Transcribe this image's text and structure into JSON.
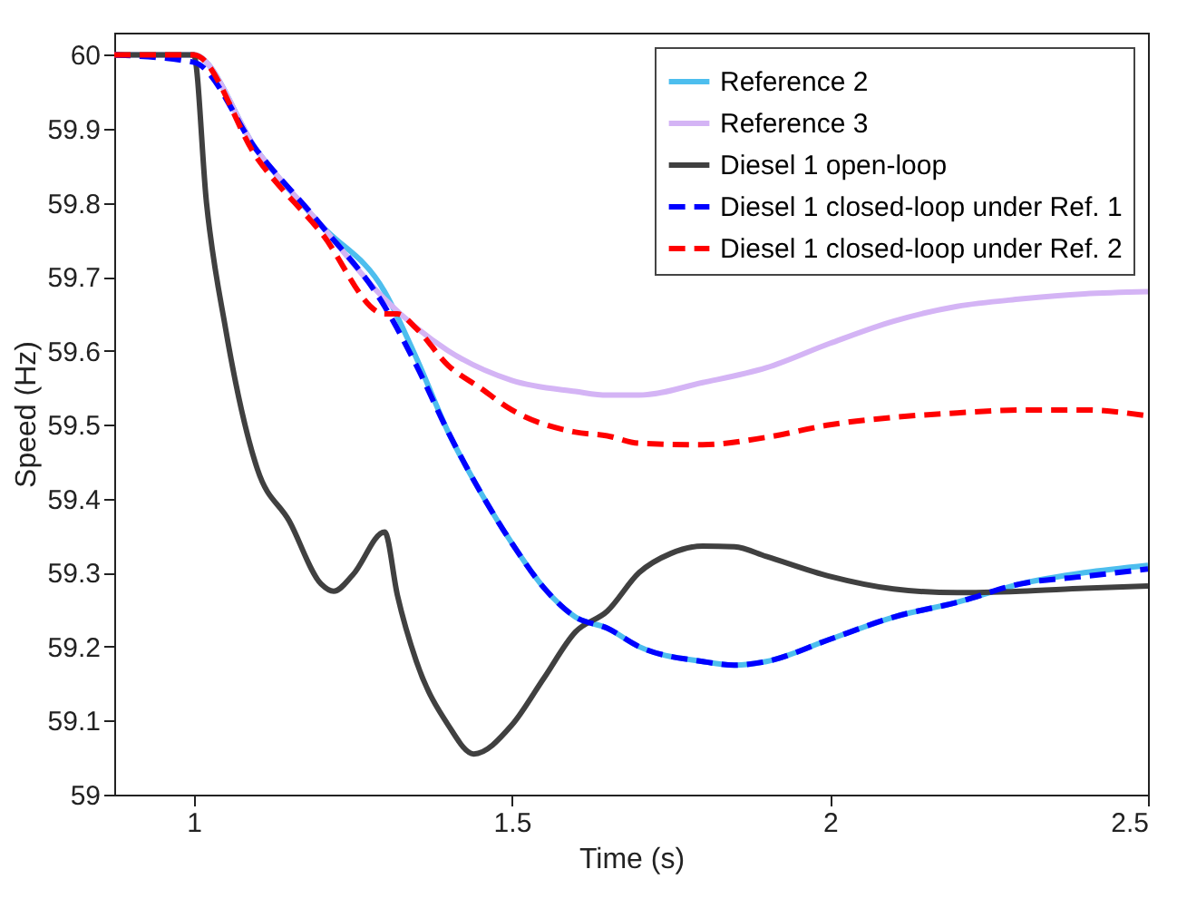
{
  "chart_data": {
    "type": "line",
    "xlabel": "Time (s)",
    "ylabel": "Speed (Hz)",
    "xlim": [
      0.875,
      2.5
    ],
    "ylim": [
      59,
      60.03
    ],
    "xticks": [
      1,
      1.5,
      2,
      2.5
    ],
    "yticks": [
      59,
      59.1,
      59.2,
      59.3,
      59.4,
      59.5,
      59.6,
      59.7,
      59.8,
      59.9,
      60
    ],
    "grid": false,
    "legend": "top right",
    "series": [
      {
        "name": "Reference 2",
        "color": "#4dbeee",
        "line_style": "solid",
        "x": [
          0.875,
          1,
          1.1,
          1.2,
          1.3,
          1.35,
          1.4,
          1.45,
          1.5,
          1.55,
          1.6,
          1.65,
          1.7,
          1.8,
          1.85,
          1.9,
          2,
          2.1,
          2.2,
          2.3,
          2.4,
          2.5
        ],
        "values": [
          60,
          60,
          59.87,
          59.77,
          59.68,
          59.59,
          59.49,
          59.41,
          59.34,
          59.28,
          59.24,
          59.225,
          59.2,
          59.18,
          59.175,
          59.18,
          59.21,
          59.24,
          59.26,
          59.285,
          59.3,
          59.31
        ]
      },
      {
        "name": "Reference 3",
        "color": "#d4b4f5",
        "line_style": "solid",
        "x": [
          0.875,
          1,
          1.1,
          1.2,
          1.3,
          1.4,
          1.5,
          1.6,
          1.65,
          1.7,
          1.8,
          1.9,
          2,
          2.1,
          2.2,
          2.3,
          2.4,
          2.5
        ],
        "values": [
          60,
          60,
          59.87,
          59.77,
          59.67,
          59.6,
          59.56,
          59.545,
          59.54,
          59.54,
          59.557,
          59.577,
          59.61,
          59.64,
          59.66,
          59.67,
          59.677,
          59.68
        ]
      },
      {
        "name": "Diesel 1 open-loop",
        "color": "#404040",
        "line_style": "solid",
        "x": [
          0.875,
          1,
          1.02,
          1.05,
          1.1,
          1.15,
          1.2,
          1.22,
          1.25,
          1.3,
          1.32,
          1.35,
          1.4,
          1.44,
          1.5,
          1.55,
          1.6,
          1.65,
          1.7,
          1.75,
          1.8,
          1.85,
          1.9,
          2,
          2.1,
          2.2,
          2.3,
          2.4,
          2.5
        ],
        "values": [
          60,
          60,
          59.8,
          59.63,
          59.44,
          59.37,
          59.285,
          59.275,
          59.297,
          59.355,
          59.27,
          59.18,
          59.094,
          59.055,
          59.094,
          59.157,
          59.22,
          59.248,
          59.3,
          59.326,
          59.336,
          59.335,
          59.322,
          59.295,
          59.278,
          59.273,
          59.275,
          59.279,
          59.282
        ]
      },
      {
        "name": "Diesel 1 closed-loop under Ref. 1",
        "color": "#0000ff",
        "line_style": "dashed",
        "x": [
          0.875,
          1,
          1.1,
          1.2,
          1.3,
          1.35,
          1.4,
          1.45,
          1.5,
          1.55,
          1.6,
          1.65,
          1.7,
          1.8,
          1.85,
          1.9,
          2,
          2.1,
          2.2,
          2.3,
          2.4,
          2.5
        ],
        "values": [
          60,
          59.99,
          59.87,
          59.77,
          59.66,
          59.58,
          59.49,
          59.41,
          59.34,
          59.28,
          59.24,
          59.225,
          59.2,
          59.18,
          59.175,
          59.18,
          59.21,
          59.24,
          59.26,
          59.285,
          59.295,
          59.305
        ]
      },
      {
        "name": "Diesel 1 closed-loop under Ref. 2",
        "color": "#ff0000",
        "line_style": "dashed",
        "x": [
          0.875,
          1,
          1.1,
          1.2,
          1.3,
          1.32,
          1.35,
          1.4,
          1.45,
          1.5,
          1.6,
          1.65,
          1.7,
          1.8,
          1.9,
          2,
          2.1,
          2.2,
          2.3,
          2.4,
          2.5
        ],
        "values": [
          60,
          60,
          59.86,
          59.76,
          59.65,
          59.65,
          59.63,
          59.58,
          59.55,
          59.52,
          59.49,
          59.485,
          59.475,
          59.473,
          59.483,
          59.5,
          59.51,
          59.516,
          59.52,
          59.52,
          59.512
        ]
      }
    ]
  }
}
